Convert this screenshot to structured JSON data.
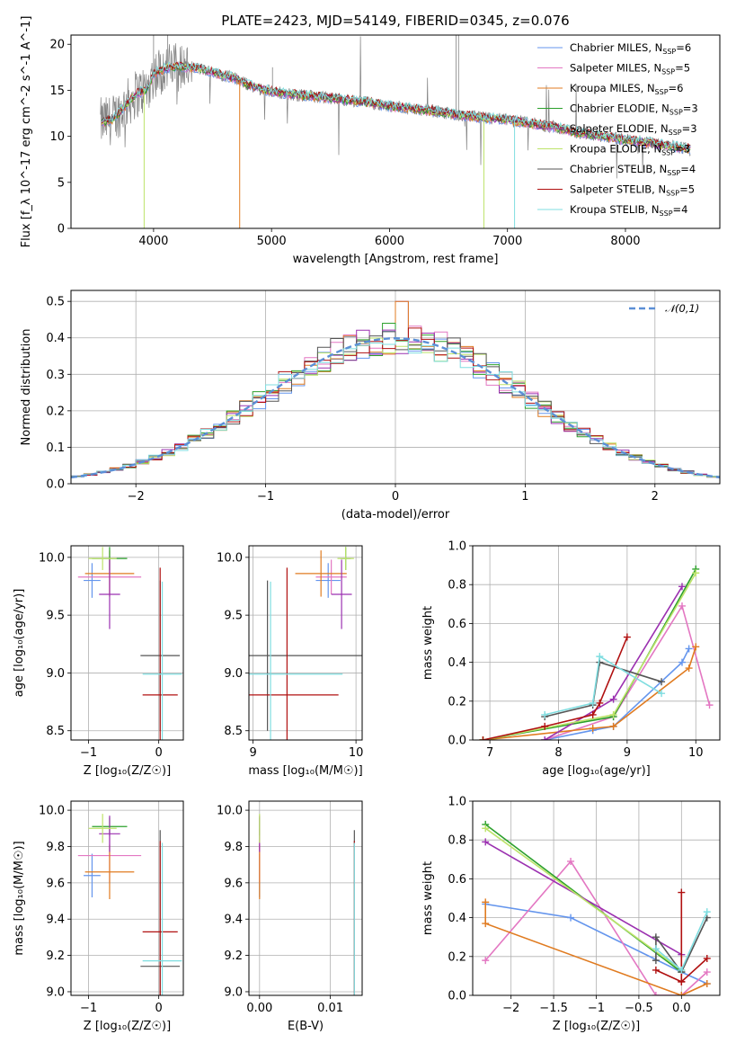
{
  "figure": {
    "title": "PLATE=2423, MJD=54149, FIBERID=0345, z=0.076"
  },
  "colors": {
    "chabrier_miles": "#6495ed",
    "salpeter_miles": "#e377c2",
    "kroupa_miles": "#e07b20",
    "chabrier_elodie": "#2ca02c",
    "salpeter_elodie": "#9b30b0",
    "kroupa_elodie": "#bde36a",
    "chabrier_stelib": "#555555",
    "salpeter_stelib": "#b01010",
    "kroupa_stelib": "#7fdde0",
    "data": "#808080",
    "gauss": "#5b8fd6"
  },
  "legend_spectrum": [
    {
      "text": "Chabrier MILES, N",
      "sub": "SSP",
      "tail": "=6",
      "color": "#6495ed"
    },
    {
      "text": "Salpeter MILES, N",
      "sub": "SSP",
      "tail": "=5",
      "color": "#e377c2"
    },
    {
      "text": "Kroupa MILES, N",
      "sub": "SSP",
      "tail": "=6",
      "color": "#e07b20"
    },
    {
      "text": "Chabrier ELODIE, N",
      "sub": "SSP",
      "tail": "=3",
      "color": "#2ca02c"
    },
    {
      "text": "Salpeter ELODIE, N",
      "sub": "SSP",
      "tail": "=3",
      "color": "#9b30b0"
    },
    {
      "text": "Kroupa ELODIE, N",
      "sub": "SSP",
      "tail": "=3",
      "color": "#bde36a"
    },
    {
      "text": "Chabrier STELIB, N",
      "sub": "SSP",
      "tail": "=4",
      "color": "#555555"
    },
    {
      "text": "Salpeter STELIB, N",
      "sub": "SSP",
      "tail": "=5",
      "color": "#b01010"
    },
    {
      "text": "Kroupa STELIB, N",
      "sub": "SSP",
      "tail": "=4",
      "color": "#7fdde0"
    }
  ],
  "chart_data": [
    {
      "id": "spectrum",
      "type": "line",
      "title": "PLATE=2423, MJD=54149, FIBERID=0345, z=0.076",
      "xlabel": "wavelength [Angstrom, rest frame]",
      "ylabel": "Flux [f_λ 10^-17 erg cm^-2 s^-1 A^-1]",
      "xlim": [
        3300,
        8800
      ],
      "ylim": [
        0,
        21
      ],
      "xticks": [
        4000,
        5000,
        6000,
        7000,
        8000
      ],
      "yticks": [
        0,
        5,
        10,
        15,
        20
      ],
      "continuum": {
        "x": [
          3550,
          3650,
          3750,
          3850,
          3950,
          4000,
          4100,
          4200,
          4300,
          4400,
          4500,
          4600,
          4700,
          4800,
          4900,
          5000,
          5200,
          5400,
          5600,
          5800,
          6000,
          6200,
          6400,
          6600,
          6800,
          7000,
          7200,
          7400,
          7600,
          7800,
          8000,
          8200,
          8400,
          8550
        ],
        "y": [
          11.5,
          11.8,
          13.2,
          14.6,
          15.2,
          16.8,
          17.4,
          17.6,
          17.5,
          17.3,
          17.0,
          16.6,
          16.3,
          15.6,
          15.2,
          14.9,
          14.5,
          14.3,
          14.0,
          13.7,
          13.3,
          13.0,
          12.7,
          12.3,
          12.0,
          11.8,
          11.4,
          11.0,
          10.4,
          10.0,
          9.6,
          9.3,
          8.9,
          8.6
        ]
      },
      "grid": false,
      "legend_position": "top-right"
    },
    {
      "id": "residuals",
      "type": "line",
      "xlabel": "(data-model)/error",
      "ylabel": "Normed distribution",
      "xlim": [
        -2.5,
        2.5
      ],
      "ylim": [
        0,
        0.53
      ],
      "xticks": [
        -2,
        -1,
        0,
        1,
        2
      ],
      "yticks": [
        0.0,
        0.1,
        0.2,
        0.3,
        0.4,
        0.5
      ],
      "gauss_label": "𝒩(0,1)",
      "grid": true,
      "legend_position": "top-right"
    },
    {
      "id": "age_vs_Z",
      "type": "scatter",
      "xlabel": "Z [log₁₀(Z/Z☉)]",
      "ylabel": "age  [log₁₀(age/yr)]",
      "xlim": [
        -1.25,
        0.35
      ],
      "ylim": [
        8.42,
        10.1
      ],
      "xticks": [
        -1,
        0
      ],
      "yticks": [
        8.5,
        9.0,
        9.5,
        10.0
      ],
      "points": [
        {
          "x": -0.95,
          "xerr": 0.12,
          "y": 9.8,
          "yerr": 0.15,
          "color": "#6495ed"
        },
        {
          "x": -0.7,
          "xerr": 0.45,
          "y": 9.83,
          "yerr": 0.15,
          "color": "#e377c2"
        },
        {
          "x": -0.7,
          "xerr": 0.35,
          "y": 9.86,
          "yerr": 0.2,
          "color": "#e07b20"
        },
        {
          "x": -0.7,
          "xerr": 0.25,
          "y": 9.99,
          "yerr": 0.1,
          "color": "#2ca02c"
        },
        {
          "x": -0.7,
          "xerr": 0.15,
          "y": 9.68,
          "yerr": 0.3,
          "color": "#9b30b0"
        },
        {
          "x": -0.8,
          "xerr": 0.2,
          "y": 9.99,
          "yerr": 0.1,
          "color": "#bde36a"
        },
        {
          "x": 0.02,
          "xerr": 0.28,
          "y": 9.15,
          "yerr": 0.65,
          "color": "#555555"
        },
        {
          "x": 0.02,
          "xerr": 0.25,
          "y": 8.81,
          "yerr": 1.1,
          "color": "#b01010"
        },
        {
          "x": 0.05,
          "xerr": 0.28,
          "y": 8.99,
          "yerr": 0.8,
          "color": "#7fdde0"
        }
      ],
      "grid": true
    },
    {
      "id": "age_vs_mass",
      "type": "scatter",
      "xlabel": "mass [log₁₀(M/M☉)]",
      "ylabel": "",
      "xlim": [
        8.96,
        10.06
      ],
      "ylim": [
        8.42,
        10.1
      ],
      "xticks": [
        9,
        10
      ],
      "yticks": [
        8.5,
        9.0,
        9.5,
        10.0
      ],
      "points": [
        {
          "x": 9.73,
          "xerr": 0.12,
          "y": 9.8,
          "yerr": 0.15,
          "color": "#6495ed"
        },
        {
          "x": 9.76,
          "xerr": 0.15,
          "y": 9.83,
          "yerr": 0.15,
          "color": "#e377c2"
        },
        {
          "x": 9.66,
          "xerr": 0.25,
          "y": 9.86,
          "yerr": 0.2,
          "color": "#e07b20"
        },
        {
          "x": 9.9,
          "xerr": 0.05,
          "y": 9.99,
          "yerr": 0.1,
          "color": "#2ca02c"
        },
        {
          "x": 9.86,
          "xerr": 0.1,
          "y": 9.68,
          "yerr": 0.3,
          "color": "#9b30b0"
        },
        {
          "x": 9.9,
          "xerr": 0.08,
          "y": 9.99,
          "yerr": 0.1,
          "color": "#bde36a"
        },
        {
          "x": 9.14,
          "xerr": 0.95,
          "y": 9.15,
          "yerr": 0.65,
          "color": "#555555"
        },
        {
          "x": 9.33,
          "xerr": 0.5,
          "y": 8.81,
          "yerr": 1.1,
          "color": "#b01010"
        },
        {
          "x": 9.17,
          "xerr": 0.7,
          "y": 8.99,
          "yerr": 0.8,
          "color": "#7fdde0"
        }
      ],
      "grid": true
    },
    {
      "id": "massweight_vs_age",
      "type": "line",
      "xlabel": "age  [log₁₀(age/yr)]",
      "ylabel": "mass weight",
      "xlim": [
        6.75,
        10.35
      ],
      "ylim": [
        0,
        1.0
      ],
      "xticks": [
        7,
        8,
        9,
        10
      ],
      "yticks": [
        0.0,
        0.2,
        0.4,
        0.6,
        0.8,
        1.0
      ],
      "series": [
        {
          "color": "#6495ed",
          "x": [
            7.8,
            8.5,
            8.8,
            9.8,
            9.9
          ],
          "y": [
            0.0,
            0.05,
            0.07,
            0.4,
            0.47
          ]
        },
        {
          "color": "#e377c2",
          "x": [
            7.8,
            8.8,
            9.8,
            10.2
          ],
          "y": [
            0.0,
            0.12,
            0.69,
            0.18
          ]
        },
        {
          "color": "#e07b20",
          "x": [
            6.9,
            8.5,
            8.8,
            9.9,
            10.0
          ],
          "y": [
            0.0,
            0.06,
            0.07,
            0.37,
            0.48
          ]
        },
        {
          "color": "#2ca02c",
          "x": [
            6.9,
            8.8,
            10.0
          ],
          "y": [
            0.0,
            0.12,
            0.88
          ]
        },
        {
          "color": "#9b30b0",
          "x": [
            7.8,
            8.8,
            9.8
          ],
          "y": [
            0.0,
            0.21,
            0.79
          ]
        },
        {
          "color": "#bde36a",
          "x": [
            6.9,
            8.8,
            10.0
          ],
          "y": [
            0.0,
            0.13,
            0.86
          ]
        },
        {
          "color": "#555555",
          "x": [
            7.8,
            8.5,
            8.6,
            9.5
          ],
          "y": [
            0.12,
            0.18,
            0.4,
            0.3
          ]
        },
        {
          "color": "#b01010",
          "x": [
            6.9,
            7.8,
            8.5,
            8.6,
            9.0
          ],
          "y": [
            0.0,
            0.07,
            0.13,
            0.19,
            0.53
          ]
        },
        {
          "color": "#7fdde0",
          "x": [
            7.8,
            8.5,
            8.6,
            9.5
          ],
          "y": [
            0.13,
            0.19,
            0.43,
            0.24
          ]
        }
      ],
      "grid": true
    },
    {
      "id": "mass_vs_Z",
      "type": "scatter",
      "xlabel": "Z [log₁₀(Z/Z☉)]",
      "ylabel": "mass [log₁₀(M/M☉)]",
      "xlim": [
        -1.25,
        0.35
      ],
      "ylim": [
        8.98,
        10.05
      ],
      "xticks": [
        -1,
        0
      ],
      "yticks": [
        9.0,
        9.2,
        9.4,
        9.6,
        9.8,
        10.0
      ],
      "points": [
        {
          "x": -0.95,
          "xerr": 0.12,
          "y": 9.64,
          "yerr": 0.12,
          "color": "#6495ed"
        },
        {
          "x": -0.7,
          "xerr": 0.45,
          "y": 9.75,
          "yerr": 0.15,
          "color": "#e377c2"
        },
        {
          "x": -0.7,
          "xerr": 0.35,
          "y": 9.66,
          "yerr": 0.15,
          "color": "#e07b20"
        },
        {
          "x": -0.7,
          "xerr": 0.25,
          "y": 9.91,
          "yerr": 0.05,
          "color": "#2ca02c"
        },
        {
          "x": -0.7,
          "xerr": 0.15,
          "y": 9.87,
          "yerr": 0.1,
          "color": "#9b30b0"
        },
        {
          "x": -0.8,
          "xerr": 0.2,
          "y": 9.9,
          "yerr": 0.08,
          "color": "#bde36a"
        },
        {
          "x": 0.02,
          "xerr": 0.28,
          "y": 9.14,
          "yerr": 0.75,
          "color": "#555555"
        },
        {
          "x": 0.02,
          "xerr": 0.25,
          "y": 9.33,
          "yerr": 0.5,
          "color": "#b01010"
        },
        {
          "x": 0.05,
          "xerr": 0.28,
          "y": 9.17,
          "yerr": 0.65,
          "color": "#7fdde0"
        }
      ],
      "grid": true
    },
    {
      "id": "mass_vs_ebv",
      "type": "scatter",
      "xlabel": "E(B-V)",
      "ylabel": "",
      "xlim": [
        -0.0015,
        0.0145
      ],
      "ylim": [
        8.98,
        10.05
      ],
      "xticks": [
        0.0,
        0.01
      ],
      "yticks": [
        9.0,
        9.2,
        9.4,
        9.6,
        9.8,
        10.0
      ],
      "points": [
        {
          "x": 0.0,
          "y": 9.64,
          "yerr": 0.12,
          "color": "#6495ed"
        },
        {
          "x": 0.0,
          "y": 9.75,
          "yerr": 0.15,
          "color": "#e377c2"
        },
        {
          "x": 0.0,
          "y": 9.66,
          "yerr": 0.15,
          "color": "#e07b20"
        },
        {
          "x": 0.0,
          "y": 9.91,
          "yerr": 0.05,
          "color": "#2ca02c"
        },
        {
          "x": 0.0,
          "y": 9.87,
          "yerr": 0.1,
          "color": "#9b30b0"
        },
        {
          "x": 0.0,
          "y": 9.9,
          "yerr": 0.08,
          "color": "#bde36a"
        },
        {
          "x": 0.0134,
          "y": 9.14,
          "yerr": 0.75,
          "color": "#555555"
        },
        {
          "x": 0.0134,
          "y": 9.33,
          "yerr": 0.5,
          "color": "#b01010"
        },
        {
          "x": 0.0134,
          "y": 9.17,
          "yerr": 0.65,
          "color": "#7fdde0"
        }
      ],
      "grid": true
    },
    {
      "id": "massweight_vs_Z",
      "type": "line",
      "xlabel": "Z [log₁₀(Z/Z☉)]",
      "ylabel": "mass weight",
      "xlim": [
        -2.45,
        0.45
      ],
      "ylim": [
        0,
        1.0
      ],
      "xticks": [
        -2.0,
        -1.5,
        -1.0,
        -0.5,
        0.0
      ],
      "yticks": [
        0.0,
        0.2,
        0.4,
        0.6,
        0.8,
        1.0
      ],
      "series": [
        {
          "color": "#6495ed",
          "x": [
            -2.3,
            -1.3,
            0.0,
            0.3
          ],
          "y": [
            0.47,
            0.4,
            0.12,
            0.06
          ]
        },
        {
          "color": "#e377c2",
          "x": [
            -2.3,
            -1.3,
            -0.3,
            0.0,
            0.3
          ],
          "y": [
            0.18,
            0.69,
            0.0,
            0.0,
            0.12
          ]
        },
        {
          "color": "#e07b20",
          "x": [
            -2.3,
            -2.3,
            0.0,
            0.3
          ],
          "y": [
            0.48,
            0.37,
            0.0,
            0.06
          ]
        },
        {
          "color": "#2ca02c",
          "x": [
            -2.3,
            0.0
          ],
          "y": [
            0.88,
            0.12
          ]
        },
        {
          "color": "#9b30b0",
          "x": [
            -2.3,
            0.0
          ],
          "y": [
            0.79,
            0.21
          ]
        },
        {
          "color": "#bde36a",
          "x": [
            -2.3,
            0.0
          ],
          "y": [
            0.86,
            0.13
          ]
        },
        {
          "color": "#555555",
          "x": [
            -0.3,
            -0.3,
            0.0,
            0.3
          ],
          "y": [
            0.18,
            0.3,
            0.12,
            0.4
          ]
        },
        {
          "color": "#b01010",
          "x": [
            -0.3,
            0.0,
            0.0,
            0.0,
            0.3
          ],
          "y": [
            0.13,
            0.07,
            0.53,
            0.07,
            0.19
          ]
        },
        {
          "color": "#7fdde0",
          "x": [
            -0.3,
            0.0,
            0.3
          ],
          "y": [
            0.24,
            0.13,
            0.43
          ]
        }
      ],
      "grid": true
    }
  ]
}
